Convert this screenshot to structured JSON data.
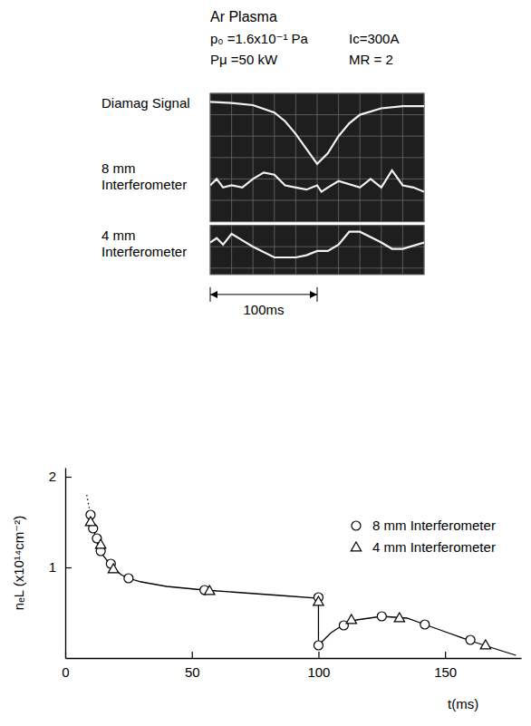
{
  "header": {
    "title": "Ar Plasma",
    "params": [
      "p₀ =1.6x10⁻¹ Pa",
      "Ic=300A",
      "Pμ =50 kW",
      "MR = 2"
    ]
  },
  "oscilloscope": {
    "scale_label": "100ms",
    "scale_divisions": 5,
    "panels": [
      {
        "xlim": [
          0,
          10
        ],
        "ylim": [
          0,
          6
        ],
        "traces": [
          {
            "label": "Diamag Signal",
            "x": [
              0,
              1,
              2,
              3,
              3.5,
              4,
              4.5,
              5,
              5.5,
              6,
              6.5,
              7,
              8,
              9,
              10
            ],
            "values": [
              0.4,
              0.45,
              0.55,
              0.9,
              1.3,
              1.9,
              2.6,
              3.3,
              2.8,
              2.0,
              1.4,
              1.0,
              0.7,
              0.6,
              0.6
            ]
          },
          {
            "label": "8 mm Interferometer",
            "x": [
              0,
              0.3,
              0.6,
              1,
              1.5,
              2,
              2.5,
              3,
              3.5,
              4,
              4.5,
              5,
              5.2,
              5.5,
              6,
              7,
              7.5,
              8,
              8.5,
              9,
              9.5,
              10
            ],
            "values": [
              4.3,
              4.0,
              4.4,
              4.3,
              4.4,
              4.0,
              3.7,
              3.8,
              4.3,
              4.4,
              4.5,
              4.3,
              4.6,
              4.4,
              4.1,
              4.4,
              4.0,
              4.4,
              3.6,
              4.3,
              4.4,
              4.6
            ]
          }
        ]
      },
      {
        "xlim": [
          0,
          10
        ],
        "ylim": [
          0,
          2.3
        ],
        "traces": [
          {
            "label": "4 mm Interferometer",
            "x": [
              0,
              0.3,
              0.6,
              1,
              1.5,
              2,
              3,
              4,
              4.5,
              5,
              5.5,
              6,
              6.5,
              7,
              8,
              8.5,
              9,
              10
            ],
            "values": [
              0.8,
              0.6,
              0.9,
              0.4,
              0.7,
              1.0,
              1.5,
              1.5,
              1.4,
              1.2,
              1.2,
              0.9,
              0.3,
              0.3,
              0.8,
              1.1,
              1.1,
              0.8
            ]
          }
        ]
      }
    ]
  },
  "chart_data": {
    "type": "scatter",
    "x_label": "t(ms)",
    "y_label": "nₑL (x10¹⁴cm⁻²)",
    "xlim": [
      0,
      180
    ],
    "ylim": [
      0,
      2.1
    ],
    "xticks": [
      0,
      50,
      100,
      150
    ],
    "yticks": [
      1,
      2
    ],
    "legend": "upper right",
    "series": [
      {
        "name": "8 mm Interferometer",
        "type": "scatter",
        "marker": "circle",
        "x": [
          10,
          11,
          12.5,
          14,
          18,
          25,
          55,
          100,
          100,
          110,
          125,
          142,
          160
        ],
        "values": [
          1.58,
          1.43,
          1.32,
          1.18,
          1.04,
          0.88,
          0.75,
          0.67,
          0.14,
          0.36,
          0.46,
          0.37,
          0.2
        ]
      },
      {
        "name": "4 mm Interferometer",
        "type": "scatter",
        "marker": "triangle",
        "x": [
          10,
          14,
          19,
          57,
          100,
          113,
          132,
          166
        ],
        "values": [
          1.5,
          1.25,
          0.98,
          0.74,
          0.62,
          0.42,
          0.44,
          0.14
        ]
      },
      {
        "type": "line",
        "line_style": "solid",
        "x": [
          10,
          11,
          12,
          13,
          15,
          18,
          22,
          25,
          30,
          40,
          55,
          70,
          85,
          100,
          100,
          105,
          110,
          115,
          125,
          135,
          142,
          150,
          160,
          170,
          178
        ],
        "values": [
          1.58,
          1.45,
          1.33,
          1.24,
          1.13,
          1.02,
          0.92,
          0.88,
          0.84,
          0.79,
          0.75,
          0.72,
          0.69,
          0.66,
          0.14,
          0.28,
          0.37,
          0.42,
          0.46,
          0.44,
          0.37,
          0.29,
          0.19,
          0.1,
          0.03
        ]
      },
      {
        "type": "line",
        "line_style": "dotted",
        "x": [
          8.5,
          10
        ],
        "values": [
          1.8,
          1.58
        ]
      }
    ]
  }
}
